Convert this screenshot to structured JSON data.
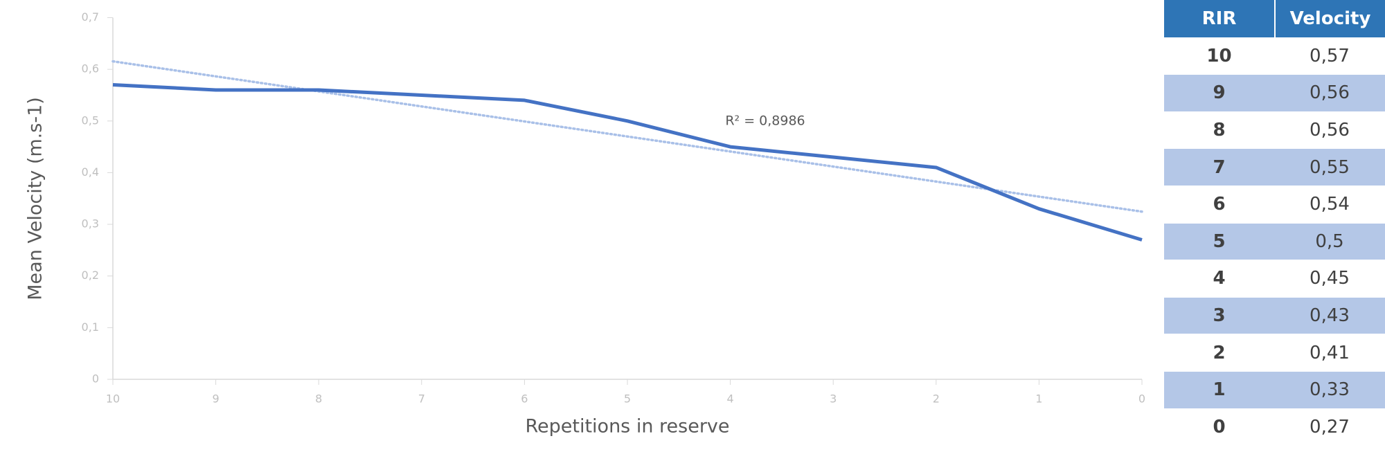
{
  "chart_data": {
    "type": "line",
    "x_label": "Repetitions in reserve",
    "y_label": "Mean Velocity (m.s-1)",
    "annotation": "R² = 0,8986",
    "categories": [
      "10",
      "9",
      "8",
      "7",
      "6",
      "5",
      "4",
      "3",
      "2",
      "1",
      "0"
    ],
    "values": [
      0.57,
      0.56,
      0.56,
      0.55,
      0.54,
      0.5,
      0.45,
      0.43,
      0.41,
      0.33,
      0.27
    ],
    "color": "#4472c4",
    "trendline": "linear",
    "trendline_color": "#a9c0e8",
    "ylim": [
      0,
      0.7
    ],
    "yticks": [
      {
        "value": 0,
        "label": "0"
      },
      {
        "value": 0.1,
        "label": "0,1"
      },
      {
        "value": 0.2,
        "label": "0,2"
      },
      {
        "value": 0.3,
        "label": "0,3"
      },
      {
        "value": 0.4,
        "label": "0,4"
      },
      {
        "value": 0.5,
        "label": "0,5"
      },
      {
        "value": 0.6,
        "label": "0,6"
      },
      {
        "value": 0.7,
        "label": "0,7"
      }
    ]
  },
  "table": {
    "header": [
      "RIR",
      "Velocity"
    ],
    "rows": [
      [
        "10",
        "0,57"
      ],
      [
        "9",
        "0,56"
      ],
      [
        "8",
        "0,56"
      ],
      [
        "7",
        "0,55"
      ],
      [
        "6",
        "0,54"
      ],
      [
        "5",
        "0,5"
      ],
      [
        "4",
        "0,45"
      ],
      [
        "3",
        "0,43"
      ],
      [
        "2",
        "0,41"
      ],
      [
        "1",
        "0,33"
      ],
      [
        "0",
        "0,27"
      ]
    ]
  }
}
